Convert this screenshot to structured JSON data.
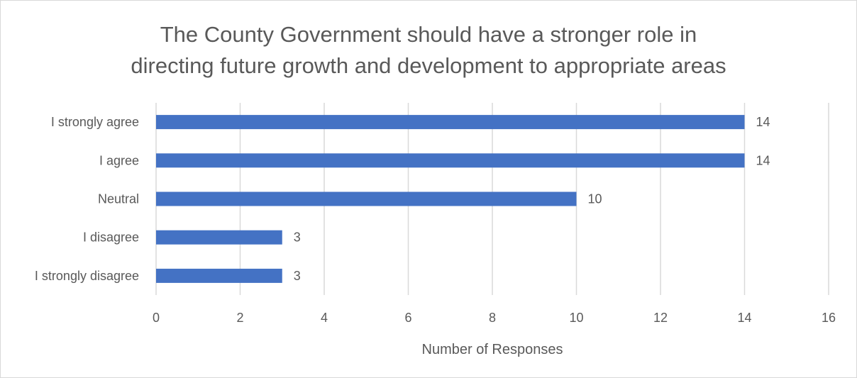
{
  "chart_data": {
    "type": "bar",
    "orientation": "horizontal",
    "title": "The County Government should have a stronger role in directing future growth and development to appropriate areas",
    "title_lines": [
      "The County Government should have a stronger role in",
      "directing future growth and development to appropriate areas"
    ],
    "categories": [
      "I strongly agree",
      "I agree",
      "Neutral",
      "I disagree",
      "I strongly disagree"
    ],
    "values": [
      14,
      14,
      10,
      3,
      3
    ],
    "data_labels": [
      "14",
      "14",
      "10",
      "3",
      "3"
    ],
    "xlabel": "Number of Responses",
    "ylabel": "",
    "xlim": [
      0,
      16
    ],
    "xticks": [
      0,
      2,
      4,
      6,
      8,
      10,
      12,
      14,
      16
    ],
    "xtick_labels": [
      "0",
      "2",
      "4",
      "6",
      "8",
      "10",
      "12",
      "14",
      "16"
    ],
    "grid": true,
    "legend": "none",
    "bar_color": "#4472C4",
    "grid_color": "#d9d9d9",
    "text_color": "#595959"
  }
}
